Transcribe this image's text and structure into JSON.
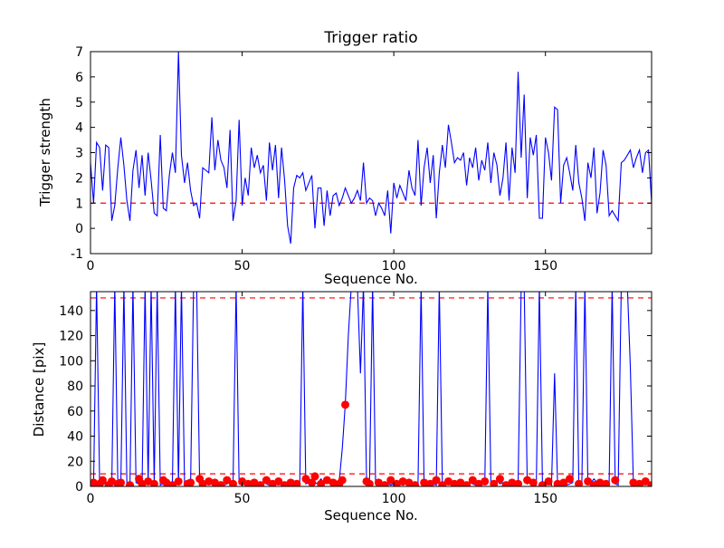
{
  "figure": {
    "background": "#ffffff"
  },
  "chart_data": [
    {
      "type": "line",
      "title": "Trigger ratio",
      "xlabel": "Sequence No.",
      "ylabel": "Trigger strength",
      "xlim": [
        0,
        185
      ],
      "ylim": [
        -1,
        7
      ],
      "xticks": [
        0,
        50,
        100,
        150
      ],
      "yticks": [
        -1,
        0,
        1,
        2,
        3,
        4,
        5,
        6,
        7
      ],
      "line_color": "#0000ff",
      "threshold_lines": [
        {
          "y": 1,
          "color": "#ff0000",
          "style": "dashed"
        }
      ],
      "values": [
        2.6,
        1.0,
        3.4,
        3.2,
        1.5,
        3.3,
        3.2,
        0.3,
        0.9,
        2.4,
        3.6,
        2.5,
        1.1,
        0.3,
        2.3,
        3.1,
        1.6,
        2.9,
        1.3,
        3.0,
        1.9,
        0.6,
        0.5,
        3.7,
        0.8,
        0.7,
        2.1,
        3.0,
        2.2,
        7.0,
        2.9,
        1.8,
        2.6,
        1.5,
        0.9,
        1.0,
        0.4,
        2.4,
        2.3,
        2.2,
        4.4,
        2.3,
        3.5,
        2.7,
        2.4,
        1.6,
        3.9,
        0.3,
        1.1,
        4.3,
        0.9,
        2.0,
        1.3,
        3.2,
        2.4,
        2.9,
        2.2,
        2.5,
        1.1,
        3.4,
        2.3,
        3.3,
        1.2,
        3.2,
        1.9,
        0.1,
        -0.6,
        1.6,
        2.1,
        2.0,
        2.2,
        1.5,
        1.8,
        2.1,
        0.0,
        1.6,
        1.6,
        0.1,
        1.5,
        0.5,
        1.3,
        1.4,
        0.9,
        1.2,
        1.6,
        1.3,
        1.0,
        1.2,
        1.5,
        1.1,
        2.6,
        1.0,
        1.2,
        1.1,
        0.5,
        1.0,
        0.8,
        0.5,
        1.5,
        -0.2,
        1.8,
        1.2,
        1.7,
        1.4,
        1.1,
        2.3,
        1.6,
        1.3,
        3.5,
        0.9,
        2.4,
        3.2,
        1.8,
        2.9,
        0.4,
        2.2,
        3.3,
        2.4,
        4.1,
        3.4,
        2.6,
        2.8,
        2.7,
        3.0,
        1.7,
        2.8,
        2.4,
        3.2,
        1.9,
        2.7,
        2.3,
        3.4,
        1.8,
        3.0,
        2.5,
        1.3,
        2.0,
        3.4,
        1.1,
        3.2,
        2.2,
        6.2,
        2.8,
        5.3,
        1.2,
        3.6,
        2.9,
        3.7,
        0.4,
        0.4,
        3.6,
        3.0,
        1.9,
        4.8,
        4.7,
        1.0,
        2.5,
        2.8,
        2.2,
        1.5,
        3.3,
        1.8,
        1.2,
        0.3,
        2.6,
        2.0,
        3.2,
        0.6,
        1.4,
        3.1,
        2.5,
        0.5,
        0.7,
        0.5,
        0.3,
        2.6,
        2.7,
        2.9,
        3.1,
        2.4,
        2.8,
        3.1,
        2.2,
        3.0,
        3.1,
        1.0
      ]
    },
    {
      "type": "line+scatter",
      "title": "",
      "xlabel": "Sequence No.",
      "ylabel": "Distance [pix]",
      "xlim": [
        0,
        185
      ],
      "ylim": [
        0,
        155
      ],
      "xticks": [
        0,
        50,
        100,
        150
      ],
      "yticks": [
        0,
        20,
        40,
        60,
        80,
        100,
        120,
        140
      ],
      "line_color": "#0000ff",
      "threshold_lines": [
        {
          "y": 150,
          "color": "#ff0000",
          "style": "dashed"
        },
        {
          "y": 10,
          "color": "#ff0000",
          "style": "dashed"
        }
      ],
      "values": [
        2,
        1,
        160,
        2,
        1,
        3,
        2,
        1,
        160,
        2,
        1,
        160,
        2,
        1,
        160,
        3,
        2,
        1,
        160,
        2,
        160,
        2,
        160,
        1,
        2,
        3,
        1,
        2,
        160,
        2,
        160,
        2,
        1,
        2,
        160,
        160,
        2,
        1,
        2,
        3,
        2,
        1,
        3,
        2,
        1,
        2,
        3,
        2,
        160,
        2,
        1,
        2,
        3,
        1,
        2,
        1,
        2,
        3,
        2,
        1,
        2,
        1,
        3,
        2,
        1,
        2,
        1,
        2,
        3,
        2,
        160,
        2,
        3,
        5,
        2,
        3,
        6,
        2,
        3,
        2,
        3,
        2,
        4,
        30,
        65,
        120,
        160,
        160,
        160,
        90,
        160,
        5,
        2,
        160,
        2,
        1,
        2,
        3,
        2,
        1,
        2,
        3,
        2,
        1,
        2,
        3,
        2,
        1,
        2,
        160,
        2,
        1,
        3,
        2,
        1,
        160,
        2,
        3,
        2,
        1,
        2,
        3,
        2,
        1,
        2,
        3,
        2,
        1,
        3,
        2,
        2,
        160,
        3,
        2,
        5,
        2,
        3,
        2,
        1,
        2,
        3,
        2,
        160,
        160,
        2,
        3,
        2,
        1,
        160,
        2,
        3,
        2,
        1,
        90,
        2,
        3,
        2,
        1,
        2,
        3,
        160,
        2,
        1,
        160,
        2,
        3,
        6,
        3,
        2,
        1,
        2,
        3,
        160,
        2,
        1,
        160,
        160,
        160,
        95,
        2,
        3,
        2,
        1,
        2,
        3,
        2
      ],
      "scatter": {
        "color": "#ff0000",
        "x": [
          1,
          3,
          4,
          6,
          7,
          9,
          10,
          13,
          16,
          17,
          19,
          21,
          24,
          25,
          27,
          29,
          32,
          33,
          36,
          37,
          39,
          41,
          43,
          45,
          47,
          50,
          52,
          54,
          56,
          58,
          60,
          62,
          64,
          66,
          68,
          71,
          73,
          74,
          76,
          78,
          80,
          82,
          83,
          84,
          91,
          92,
          95,
          97,
          99,
          101,
          103,
          105,
          107,
          110,
          112,
          114,
          116,
          118,
          120,
          122,
          124,
          126,
          128,
          130,
          133,
          135,
          137,
          139,
          141,
          144,
          146,
          149,
          151,
          154,
          156,
          158,
          161,
          164,
          166,
          168,
          170,
          173,
          179,
          181,
          183,
          185
        ],
        "y": [
          3,
          2,
          5,
          1,
          4,
          2,
          3,
          1,
          6,
          2,
          4,
          2,
          5,
          3,
          1,
          4,
          2,
          3,
          6,
          2,
          4,
          3,
          1,
          5,
          2,
          4,
          2,
          3,
          1,
          5,
          2,
          4,
          1,
          3,
          2,
          6,
          3,
          8,
          2,
          5,
          3,
          2,
          5,
          65,
          4,
          2,
          3,
          1,
          5,
          2,
          4,
          3,
          1,
          3,
          2,
          5,
          1,
          4,
          2,
          3,
          1,
          5,
          2,
          4,
          2,
          6,
          1,
          3,
          2,
          5,
          3,
          1,
          4,
          2,
          3,
          6,
          2,
          4,
          1,
          3,
          2,
          5,
          3,
          2,
          4,
          1
        ]
      }
    }
  ]
}
